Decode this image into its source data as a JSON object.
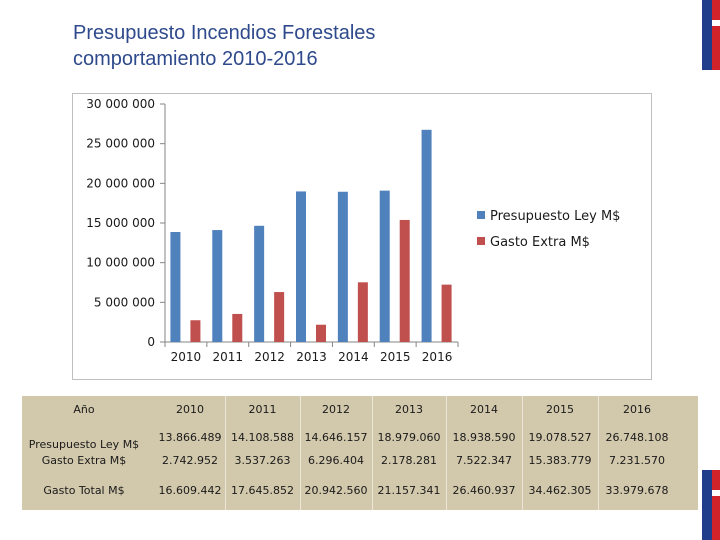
{
  "slide": {
    "title_line1": "Presupuesto Incendios Forestales",
    "title_line2": "comportamiento 2010-2016"
  },
  "colors": {
    "series1": "#4f81bd",
    "series2": "#c0504d",
    "table_bg": "#d2c8ac",
    "title": "#2e4a8c"
  },
  "chart_data": {
    "type": "bar",
    "categories": [
      "2010",
      "2011",
      "2012",
      "2013",
      "2014",
      "2015",
      "2016"
    ],
    "series": [
      {
        "name": "Presupuesto Ley M$",
        "values": [
          13866489,
          14108588,
          14646157,
          18979060,
          18938590,
          19078527,
          26748108
        ]
      },
      {
        "name": "Gasto Extra M$",
        "values": [
          2742952,
          3537263,
          6296404,
          2178281,
          7522347,
          15383779,
          7231570
        ]
      }
    ],
    "yticks": [
      "0",
      "5 000 000",
      "10 000 000",
      "15 000 000",
      "20 000 000",
      "25 000 000",
      "30 000 000"
    ],
    "ylim": [
      0,
      30000000
    ],
    "legend": "right",
    "grid": false
  },
  "table": {
    "header_label": "Año",
    "years": [
      "2010",
      "2011",
      "2012",
      "2013",
      "2014",
      "2015",
      "2016"
    ],
    "rows": [
      {
        "label": "Presupuesto Ley M$",
        "values": [
          "13.866.489",
          "14.108.588",
          "14.646.157",
          "18.979.060",
          "18.938.590",
          "19.078.527",
          "26.748.108"
        ]
      },
      {
        "label": "Gasto Extra M$",
        "values": [
          "2.742.952",
          "3.537.263",
          "6.296.404",
          "2.178.281",
          "7.522.347",
          "15.383.779",
          "7.231.570"
        ]
      },
      {
        "label": "Gasto Total M$",
        "values": [
          "16.609.442",
          "17.645.852",
          "20.942.560",
          "21.157.341",
          "26.460.937",
          "34.462.305",
          "33.979.678"
        ]
      }
    ]
  }
}
